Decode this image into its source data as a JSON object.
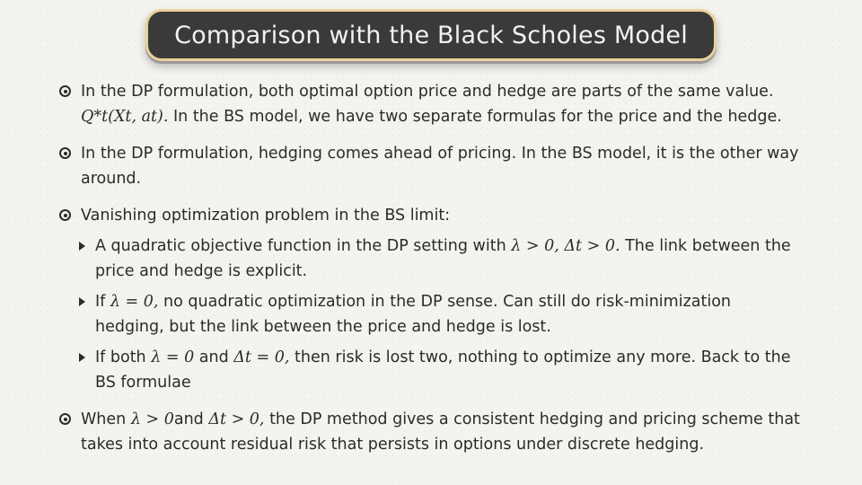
{
  "title": "Comparison with the Black Scholes Model",
  "b1": {
    "t1": "In the DP formulation, both optimal option price and hedge are parts of the same value.",
    "math": "Q*t(Xt, at).",
    "t2": " In the BS model, we have two separate formulas for the price and the hedge."
  },
  "b2": {
    "t1": "In the DP formulation, hedging comes ahead of pricing. In the BS model, it is the other way around."
  },
  "b3": {
    "t1": "Vanishing optimization problem in the BS limit:"
  },
  "s1": {
    "t1": "A quadratic objective function in the DP setting with ",
    "m1": "λ > 0, Δt > 0.",
    "t2": " The link between the price and hedge is explicit."
  },
  "s2": {
    "t1": "If ",
    "m1": "λ = 0,",
    "t2": " no quadratic optimization in the DP sense. Can still do risk-minimization hedging, but the link between the price and hedge is lost."
  },
  "s3": {
    "t1": "If both ",
    "m1": "λ = 0",
    "t2": " and ",
    "m2": "Δt = 0,",
    "t3": " then risk is lost two, nothing to optimize any more. Back to the BS formulae"
  },
  "b4": {
    "t1": "When ",
    "m1": "λ > 0",
    "t2": "and ",
    "m2": "Δt > 0,",
    "t3": " the DP method gives a consistent hedging and pricing scheme that takes into account residual risk that persists in options under discrete hedging."
  }
}
